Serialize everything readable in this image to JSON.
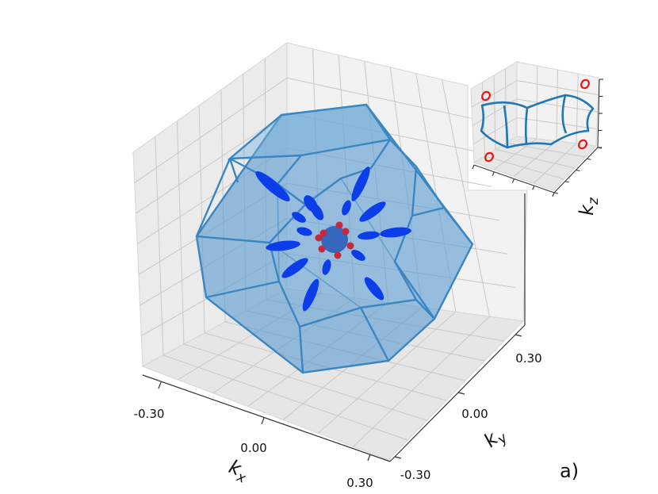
{
  "panel_label": "a)",
  "chart_data": [
    {
      "type": "3d-surface",
      "title": "",
      "axes": {
        "x": {
          "label_main": "k",
          "label_sub": "x",
          "ticks": [
            "-0.30",
            "0.00",
            "0.30"
          ],
          "range": [
            -0.3,
            0.3
          ]
        },
        "y": {
          "label_main": "k",
          "label_sub": "y",
          "ticks": [
            "-0.30",
            "0.00",
            "0.30"
          ],
          "range": [
            -0.3,
            0.3
          ]
        },
        "z": {
          "label_main": "k",
          "label_sub": "z",
          "ticks": [],
          "range": [
            -0.3,
            0.3
          ]
        }
      },
      "grid": true,
      "series": [
        {
          "shape": "truncated-octahedron",
          "color": "#1f77b4"
        },
        {
          "shape": "ellipsoid-pockets",
          "count": 14,
          "color": "#0033ee"
        },
        {
          "shape": "central-sphere",
          "color": "#2255bb"
        },
        {
          "shape": "small-pockets",
          "color": "#cc2233"
        }
      ]
    },
    {
      "type": "3d-contour-inset",
      "axes": {
        "z": {
          "label_main": "k",
          "label_sub": "z"
        }
      },
      "grid": true,
      "series": [
        {
          "shape": "closed-contour",
          "color": "#1f77b4"
        },
        {
          "shape": "small-loops",
          "count": 4,
          "color": "#ee0000"
        }
      ]
    }
  ]
}
